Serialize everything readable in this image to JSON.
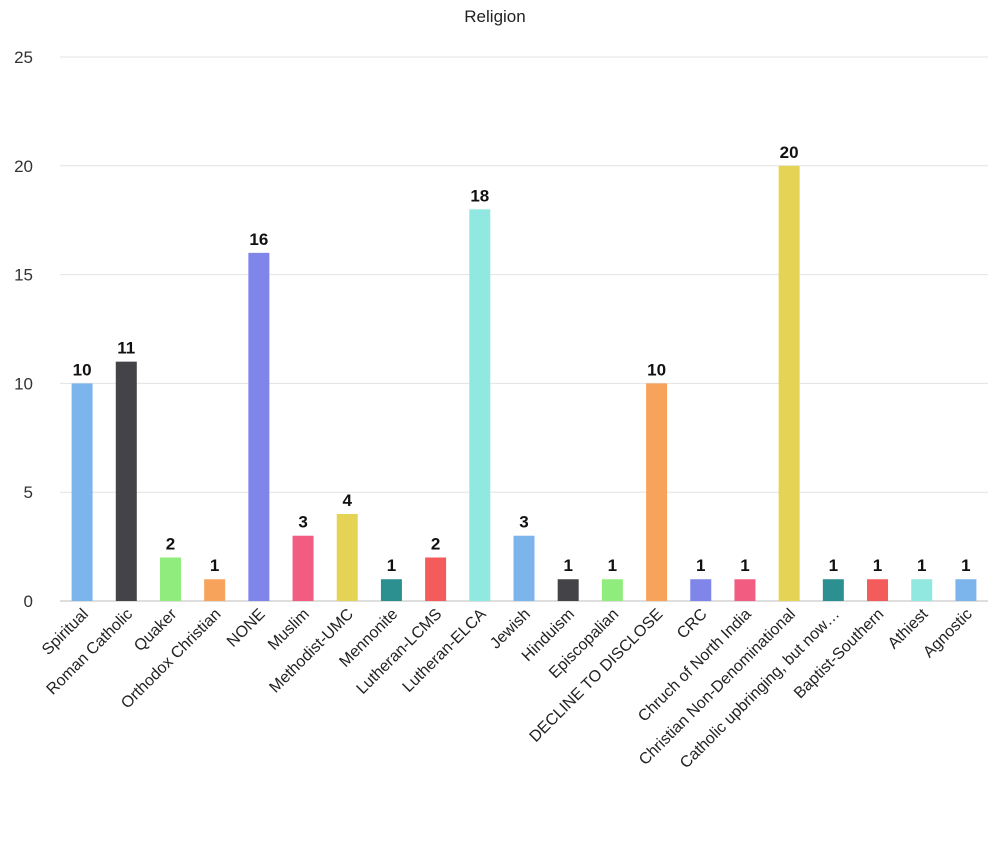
{
  "chart_data": {
    "type": "bar",
    "title": "Religion",
    "xlabel": "",
    "ylabel": "",
    "ylim": [
      0,
      25
    ],
    "yticks": [
      0,
      5,
      10,
      15,
      20,
      25
    ],
    "grid": true,
    "categories": [
      "Spiritual",
      "Roman Catholic",
      "Quaker",
      "Orthodox Christian",
      "NONE",
      "Muslim",
      "Methodist-UMC",
      "Mennonite",
      "Lutheran-LCMS",
      "Lutheran-ELCA",
      "Jewish",
      "Hinduism",
      "Episcopalian",
      "DECLINE TO DISCLOSE",
      "CRC",
      "Chruch of North India",
      "Christian Non-Denominational",
      "Catholic upbringing, but now…",
      "Baptist-Southern",
      "Athiest",
      "Agnostic"
    ],
    "values": [
      10,
      11,
      2,
      1,
      16,
      3,
      4,
      1,
      2,
      18,
      3,
      1,
      1,
      10,
      1,
      1,
      20,
      1,
      1,
      1,
      1
    ],
    "colors": [
      "#7cb5ec",
      "#434348",
      "#90ed7d",
      "#f7a35c",
      "#8085e9",
      "#f15c80",
      "#e4d354",
      "#2b908f",
      "#f45b5b",
      "#91e8e1",
      "#7cb5ec",
      "#434348",
      "#90ed7d",
      "#f7a35c",
      "#8085e9",
      "#f15c80",
      "#e4d354",
      "#2b908f",
      "#f45b5b",
      "#91e8e1",
      "#7cb5ec"
    ]
  }
}
